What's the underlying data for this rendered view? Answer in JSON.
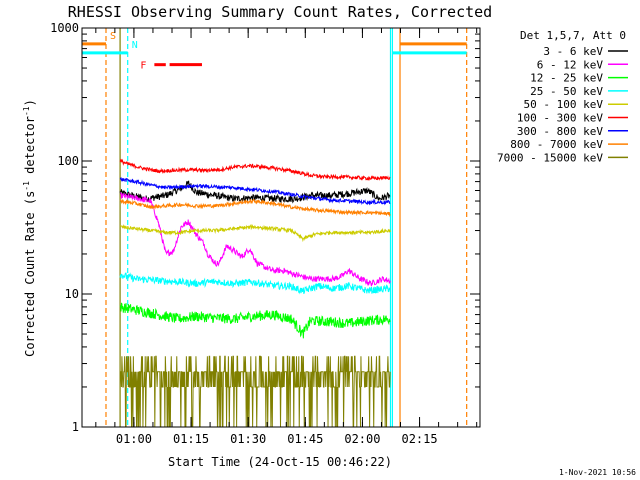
{
  "chart_data": {
    "type": "line",
    "title": "RHESSI Observing Summary Count Rates, Corrected",
    "xlabel": "Start Time (24-Oct-15 00:46:22)",
    "ylabel_parts": [
      "Corrected Count Rate (s",
      "-1",
      " detector",
      "-1",
      ")"
    ],
    "yscale": "log",
    "ylim": [
      1,
      1000
    ],
    "xlim_minutes": [
      0,
      104.5
    ],
    "x_ticks": [
      {
        "minutes": 13.63,
        "label": "01:00"
      },
      {
        "minutes": 28.63,
        "label": "01:15"
      },
      {
        "minutes": 43.63,
        "label": "01:30"
      },
      {
        "minutes": 58.63,
        "label": "01:45"
      },
      {
        "minutes": 73.63,
        "label": "02:00"
      },
      {
        "minutes": 88.63,
        "label": "02:15"
      }
    ],
    "y_ticks": [
      {
        "value": 1,
        "label": "1"
      },
      {
        "value": 10,
        "label": "10"
      },
      {
        "value": 100,
        "label": "100"
      },
      {
        "value": 1000,
        "label": "1000"
      }
    ],
    "legend_header": "Det 1,5,7, Att 0",
    "data_window_minutes": [
      10.0,
      81.0
    ],
    "series": [
      {
        "name": "3 - 6 keV",
        "color": "#000000",
        "noise": 0.06,
        "points": [
          [
            10.0,
            58
          ],
          [
            13,
            55
          ],
          [
            17,
            52
          ],
          [
            22,
            55
          ],
          [
            26,
            62
          ],
          [
            28,
            68
          ],
          [
            30,
            58
          ],
          [
            35,
            55
          ],
          [
            40,
            52
          ],
          [
            45,
            53
          ],
          [
            52,
            52
          ],
          [
            56,
            52
          ],
          [
            60,
            55
          ],
          [
            65,
            55
          ],
          [
            70,
            57
          ],
          [
            75,
            60
          ],
          [
            78,
            52
          ],
          [
            81,
            55
          ]
        ]
      },
      {
        "name": "6 - 12 keV",
        "color": "#ff00ff",
        "noise": 0.05,
        "points": [
          [
            10.0,
            55
          ],
          [
            15,
            52
          ],
          [
            18,
            50
          ],
          [
            20,
            35
          ],
          [
            22,
            20
          ],
          [
            24,
            21
          ],
          [
            26,
            32
          ],
          [
            28,
            35
          ],
          [
            30,
            28
          ],
          [
            32,
            24
          ],
          [
            33,
            20
          ],
          [
            35,
            17
          ],
          [
            36,
            17
          ],
          [
            38,
            23
          ],
          [
            40,
            21
          ],
          [
            42,
            19
          ],
          [
            44,
            22
          ],
          [
            46,
            17
          ],
          [
            50,
            15
          ],
          [
            53,
            15
          ],
          [
            56,
            14
          ],
          [
            60,
            13
          ],
          [
            63,
            13
          ],
          [
            66,
            13
          ],
          [
            68,
            13.5
          ],
          [
            70,
            15
          ],
          [
            73,
            13
          ],
          [
            76,
            12
          ],
          [
            79,
            13
          ],
          [
            81,
            12.5
          ]
        ]
      },
      {
        "name": "12 - 25 keV",
        "color": "#00ff00",
        "noise": 0.09,
        "points": [
          [
            10.0,
            8
          ],
          [
            15,
            7.5
          ],
          [
            20,
            7
          ],
          [
            25,
            6.5
          ],
          [
            30,
            6.8
          ],
          [
            35,
            6.6
          ],
          [
            40,
            6.5
          ],
          [
            45,
            6.8
          ],
          [
            50,
            7
          ],
          [
            55,
            6.5
          ],
          [
            58,
            5
          ],
          [
            60,
            6.3
          ],
          [
            65,
            6.2
          ],
          [
            70,
            6
          ],
          [
            75,
            6.3
          ],
          [
            81,
            6.5
          ]
        ]
      },
      {
        "name": "25 - 50 keV",
        "color": "#00ffff",
        "noise": 0.06,
        "points": [
          [
            10.0,
            14
          ],
          [
            14,
            13
          ],
          [
            18,
            12.8
          ],
          [
            22,
            12.5
          ],
          [
            26,
            12.3
          ],
          [
            30,
            12
          ],
          [
            35,
            12.4
          ],
          [
            40,
            12
          ],
          [
            45,
            12.3
          ],
          [
            50,
            11.6
          ],
          [
            55,
            11.4
          ],
          [
            58,
            10.5
          ],
          [
            62,
            11.5
          ],
          [
            66,
            11
          ],
          [
            70,
            11.5
          ],
          [
            75,
            10.6
          ],
          [
            81,
            11
          ]
        ]
      },
      {
        "name": "50 - 100 keV",
        "color": "#cccc00",
        "noise": 0.03,
        "points": [
          [
            10.0,
            32
          ],
          [
            14,
            31
          ],
          [
            18,
            30
          ],
          [
            22,
            29
          ],
          [
            26,
            29
          ],
          [
            30,
            30
          ],
          [
            35,
            30
          ],
          [
            40,
            31
          ],
          [
            45,
            32
          ],
          [
            50,
            31
          ],
          [
            55,
            30
          ],
          [
            58,
            26
          ],
          [
            61,
            28
          ],
          [
            65,
            29
          ],
          [
            70,
            29
          ],
          [
            75,
            29
          ],
          [
            81,
            30
          ]
        ]
      },
      {
        "name": "100 - 300 keV",
        "color": "#ff0000",
        "noise": 0.03,
        "points": [
          [
            10.0,
            100
          ],
          [
            12,
            95
          ],
          [
            16,
            88
          ],
          [
            20,
            84
          ],
          [
            24,
            85
          ],
          [
            28,
            86
          ],
          [
            32,
            85
          ],
          [
            36,
            86
          ],
          [
            40,
            90
          ],
          [
            44,
            92
          ],
          [
            48,
            90
          ],
          [
            52,
            87
          ],
          [
            56,
            83
          ],
          [
            60,
            78
          ],
          [
            64,
            76
          ],
          [
            68,
            76
          ],
          [
            72,
            75
          ],
          [
            76,
            74
          ],
          [
            81,
            75
          ]
        ]
      },
      {
        "name": "300 - 800 keV",
        "color": "#0000ff",
        "noise": 0.03,
        "points": [
          [
            10.0,
            73
          ],
          [
            14,
            70
          ],
          [
            18,
            66
          ],
          [
            22,
            63
          ],
          [
            26,
            64
          ],
          [
            30,
            65
          ],
          [
            35,
            64
          ],
          [
            40,
            63
          ],
          [
            45,
            61
          ],
          [
            50,
            59
          ],
          [
            55,
            56
          ],
          [
            60,
            53
          ],
          [
            65,
            51
          ],
          [
            70,
            50
          ],
          [
            75,
            49
          ],
          [
            81,
            49
          ]
        ]
      },
      {
        "name": "800 - 7000 keV",
        "color": "#ff8000",
        "noise": 0.03,
        "points": [
          [
            10.0,
            50
          ],
          [
            14,
            48
          ],
          [
            18,
            45
          ],
          [
            22,
            46
          ],
          [
            26,
            47
          ],
          [
            30,
            46
          ],
          [
            35,
            46
          ],
          [
            40,
            48
          ],
          [
            45,
            50
          ],
          [
            50,
            48
          ],
          [
            55,
            45
          ],
          [
            60,
            43
          ],
          [
            65,
            42
          ],
          [
            70,
            41
          ],
          [
            75,
            41
          ],
          [
            81,
            40
          ]
        ]
      },
      {
        "name": "7000 - 15000 keV",
        "color": "#808000",
        "noise": 0.25,
        "points": [
          [
            10.0,
            2.6
          ],
          [
            20,
            2.5
          ],
          [
            30,
            2.5
          ],
          [
            40,
            2.6
          ],
          [
            50,
            2.7
          ],
          [
            60,
            2.7
          ],
          [
            70,
            2.6
          ],
          [
            81,
            2.6
          ]
        ]
      }
    ],
    "attenuator_levels": [
      {
        "letter": "S",
        "color": "#ff8000",
        "value": 760,
        "start": -1,
        "end": 6.3
      },
      {
        "letter": "",
        "color": "#ff8000",
        "value": 760,
        "start": 83.5,
        "end": 101
      },
      {
        "letter": "N",
        "color": "#00ffff",
        "value": 650,
        "start": -1,
        "end": 12
      },
      {
        "letter": "",
        "color": "#00ffff",
        "value": 650,
        "start": 81.5,
        "end": 101
      }
    ],
    "vertical_markers": [
      {
        "minutes": 6.3,
        "color": "#ff8000",
        "style": "dashed"
      },
      {
        "minutes": 12.0,
        "color": "#00ffff",
        "style": "dashed"
      },
      {
        "minutes": 10.0,
        "color": "#808000",
        "style": "solid"
      },
      {
        "minutes": 81.0,
        "color": "#00ffff",
        "style": "solid"
      },
      {
        "minutes": 81.5,
        "color": "#00ffff",
        "style": "solid"
      },
      {
        "minutes": 83.5,
        "color": "#ff8000",
        "style": "solid"
      },
      {
        "minutes": 101.0,
        "color": "#ff8000",
        "style": "dashed"
      }
    ],
    "flare_marker": {
      "label": "F",
      "color": "#ff0000",
      "value": 530,
      "segments": [
        [
          19.0,
          22.0
        ],
        [
          23.0,
          31.5
        ]
      ]
    }
  },
  "date_stamp": "1-Nov-2021 10:56"
}
